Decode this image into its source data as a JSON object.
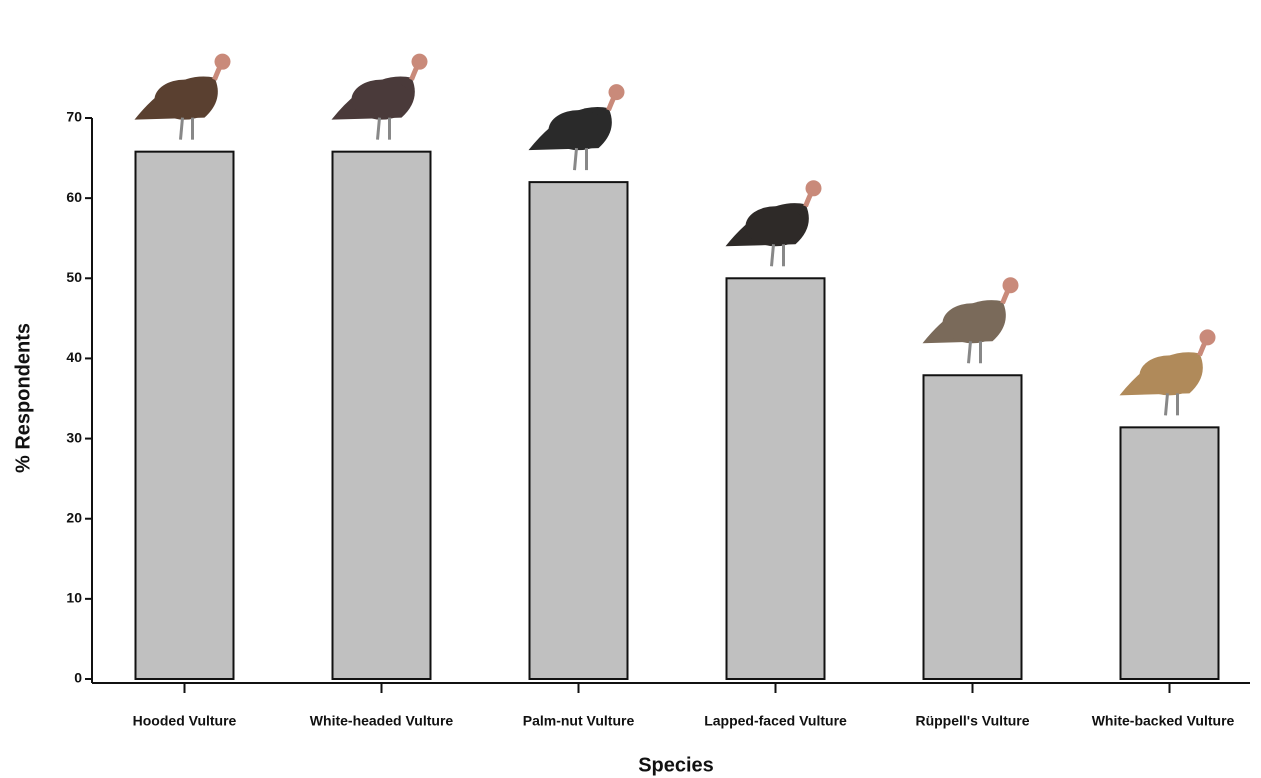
{
  "chart_data": {
    "type": "bar",
    "x_label": "Species",
    "y_label": "% Respondents",
    "categories": [
      "Hooded Vulture",
      "White-headed Vulture",
      "Palm-nut Vulture",
      "Lapped-faced Vulture",
      "Rüppell's Vulture",
      "White-backed Vulture"
    ],
    "values": [
      65.8,
      65.8,
      62,
      50,
      37.9,
      31.4
    ],
    "color": "#c0c0c0",
    "ylim": [
      0,
      70
    ],
    "yticks": [
      0,
      10,
      20,
      30,
      40,
      50,
      60,
      70
    ],
    "grid": false
  }
}
